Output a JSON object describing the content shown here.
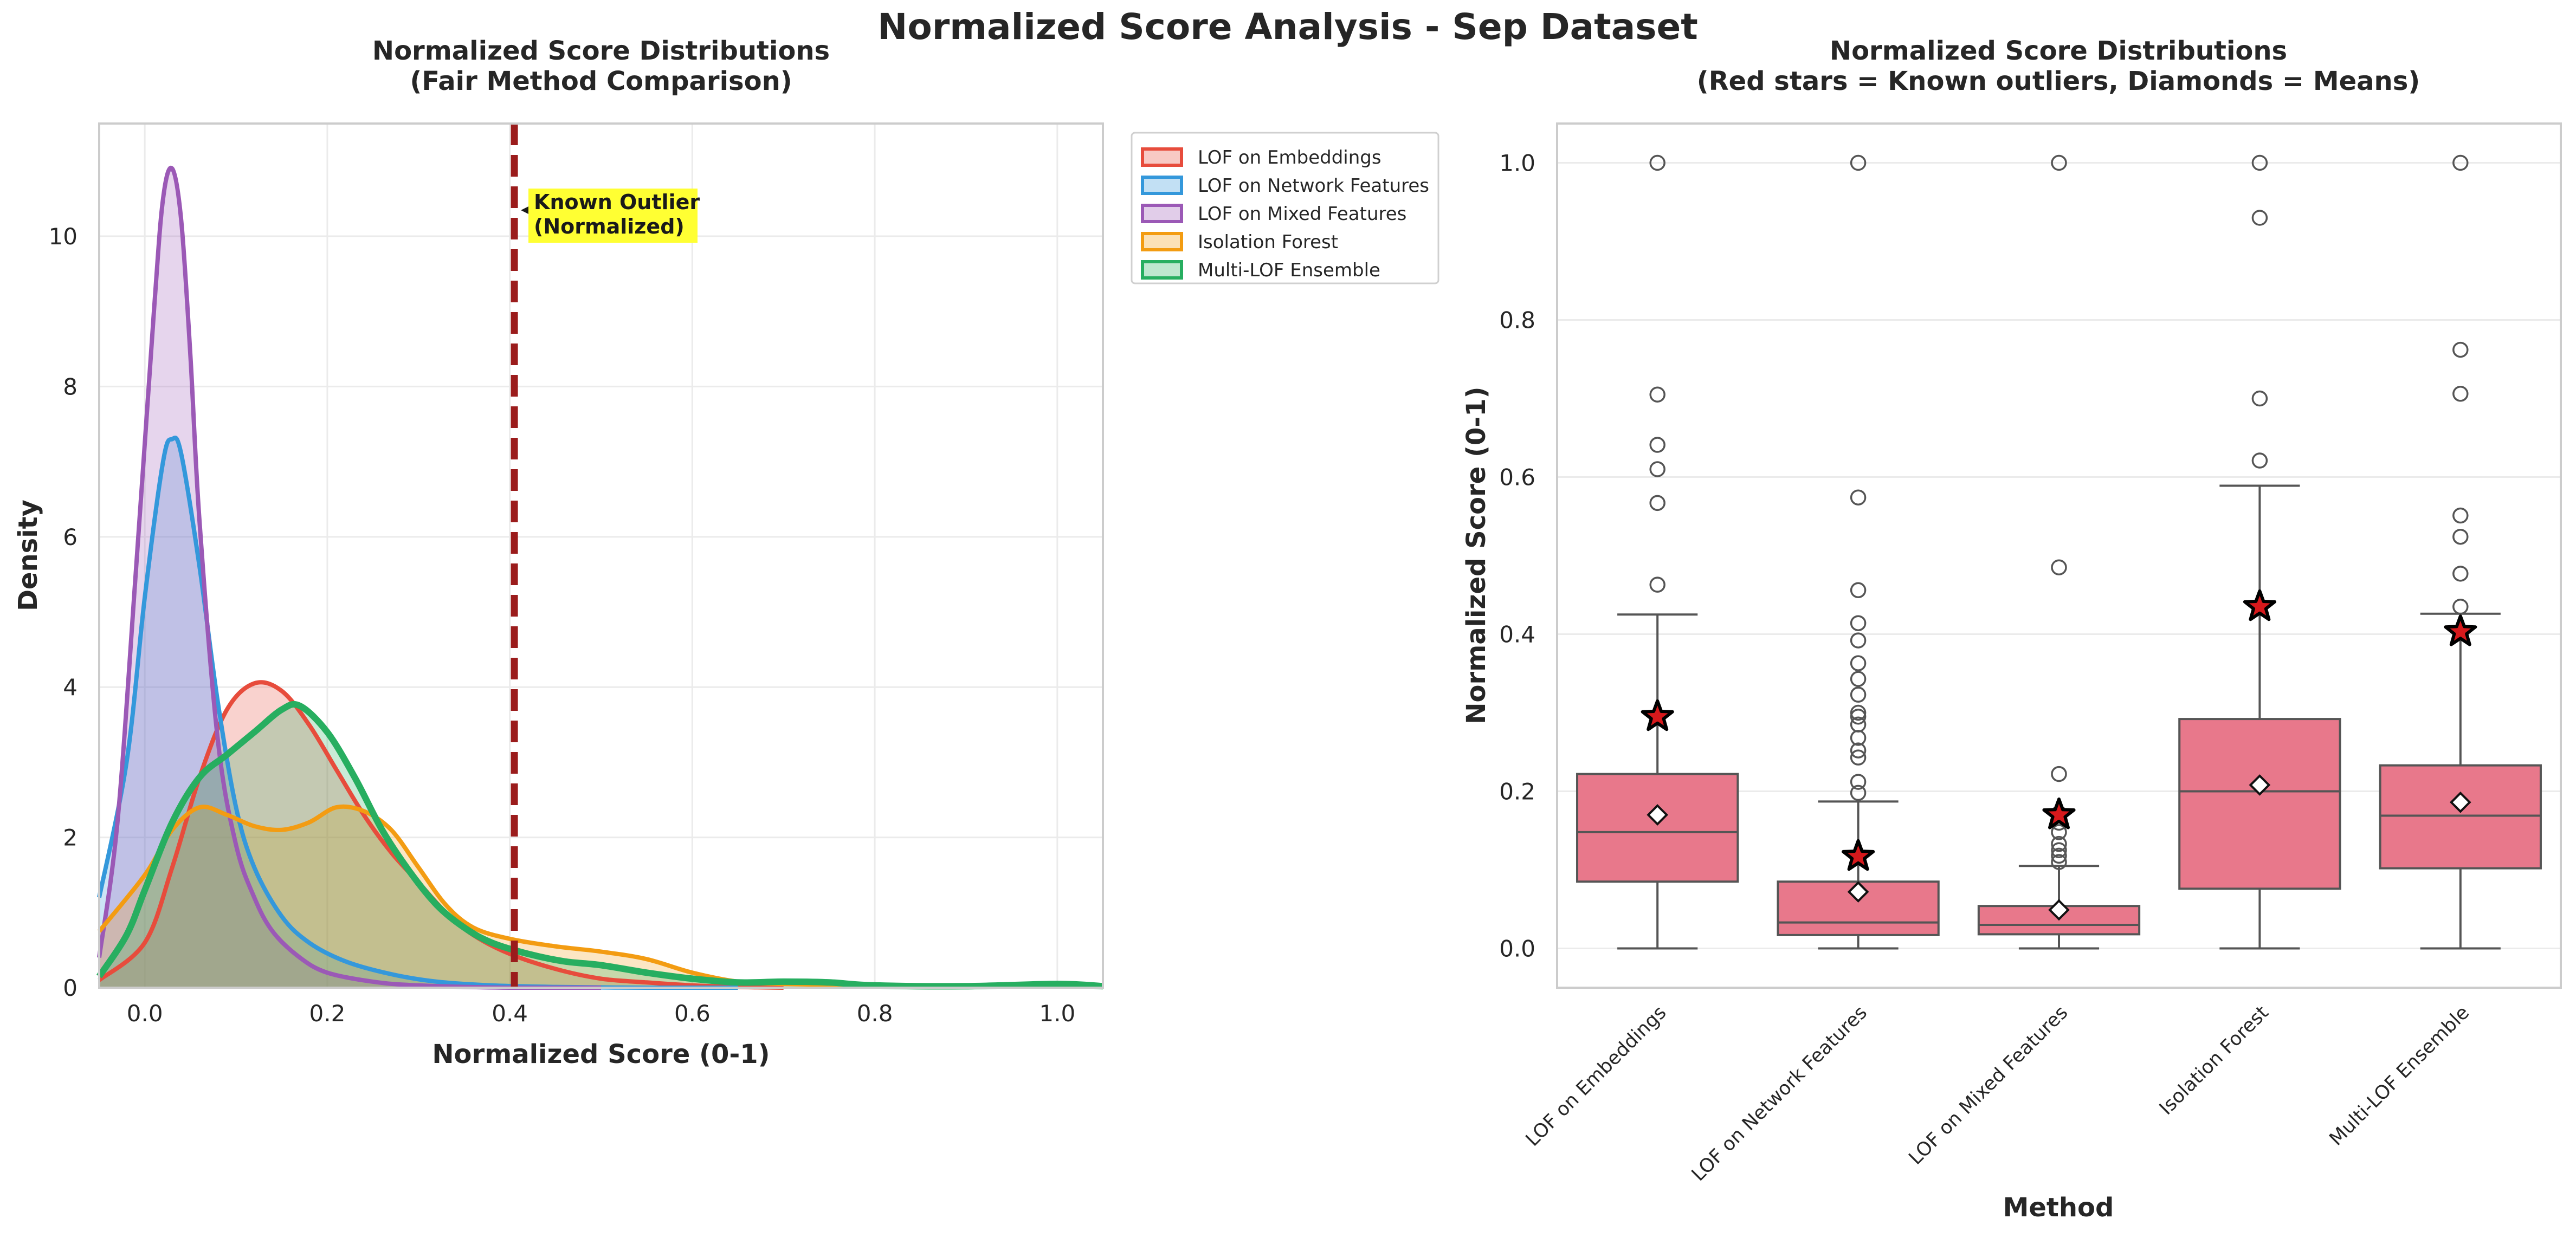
{
  "suptitle": "Normalized Score Analysis - Sep Dataset",
  "left": {
    "title_line1": "Normalized Score Distributions",
    "title_line2": "(Fair Method Comparison)",
    "xlabel": "Normalized Score (0-1)",
    "ylabel": "Density",
    "annotation_line1": "Known Outlier",
    "annotation_line2": "(Normalized)"
  },
  "right": {
    "title_line1": "Normalized Score Distributions",
    "title_line2": "(Red stars = Known outliers, Diamonds = Means)",
    "xlabel": "Method",
    "ylabel": "Normalized Score (0-1)"
  },
  "colors": {
    "lof_embeddings": "#e74c3c",
    "lof_network": "#3498db",
    "lof_mixed": "#9b59b6",
    "isolation_forest": "#f39c12",
    "multi_lof": "#27ae60",
    "known_outlier_line": "#9b1c1c",
    "annotation_bg": "#ffff33",
    "box_fill": "#e8788b",
    "box_edge": "#555555",
    "star": "#d7191c"
  },
  "chart_data": [
    {
      "type": "area",
      "title": "Normalized Score Distributions\n(Fair Method Comparison)",
      "xlabel": "Normalized Score (0-1)",
      "ylabel": "Density",
      "xlim": [
        -0.05,
        1.05
      ],
      "ylim": [
        0,
        11.5
      ],
      "xticks": [
        0.0,
        0.2,
        0.4,
        0.6,
        0.8,
        1.0
      ],
      "yticks": [
        0,
        2,
        4,
        6,
        8,
        10
      ],
      "grid": true,
      "legend": "upper right, outside plot",
      "known_outlier_x": 0.405,
      "series": [
        {
          "name": "LOF on Embeddings",
          "color": "#e74c3c",
          "x": [
            -0.05,
            0.0,
            0.03,
            0.06,
            0.09,
            0.12,
            0.15,
            0.18,
            0.21,
            0.24,
            0.27,
            0.3,
            0.33,
            0.36,
            0.4,
            0.45,
            0.5,
            0.55,
            0.6,
            0.65,
            0.7
          ],
          "y": [
            0.1,
            0.6,
            1.6,
            2.8,
            3.7,
            4.05,
            3.95,
            3.5,
            2.9,
            2.3,
            1.8,
            1.4,
            1.0,
            0.7,
            0.45,
            0.25,
            0.12,
            0.07,
            0.03,
            0.01,
            0.0
          ]
        },
        {
          "name": "LOF on Network Features",
          "color": "#3498db",
          "x": [
            -0.05,
            -0.02,
            0.0,
            0.02,
            0.03,
            0.04,
            0.06,
            0.08,
            0.1,
            0.12,
            0.15,
            0.18,
            0.22,
            0.27,
            0.32,
            0.38,
            0.45,
            0.55,
            0.65
          ],
          "y": [
            1.2,
            3.0,
            5.2,
            7.0,
            7.3,
            7.1,
            5.6,
            3.8,
            2.4,
            1.6,
            0.95,
            0.6,
            0.35,
            0.18,
            0.08,
            0.03,
            0.01,
            0.0,
            0.0
          ]
        },
        {
          "name": "LOF on Mixed Features",
          "color": "#9b59b6",
          "x": [
            -0.05,
            -0.03,
            -0.01,
            0.01,
            0.02,
            0.03,
            0.04,
            0.05,
            0.06,
            0.08,
            0.1,
            0.12,
            0.14,
            0.17,
            0.2,
            0.25,
            0.3,
            0.4,
            0.5
          ],
          "y": [
            0.4,
            2.2,
            5.5,
            9.0,
            10.5,
            10.9,
            10.2,
            8.4,
            6.2,
            3.3,
            1.9,
            1.2,
            0.75,
            0.4,
            0.2,
            0.08,
            0.03,
            0.0,
            0.0
          ]
        },
        {
          "name": "Isolation Forest",
          "color": "#f39c12",
          "x": [
            -0.05,
            0.0,
            0.03,
            0.06,
            0.09,
            0.12,
            0.15,
            0.18,
            0.21,
            0.24,
            0.27,
            0.3,
            0.33,
            0.36,
            0.4,
            0.45,
            0.5,
            0.55,
            0.6,
            0.65,
            0.7,
            0.8,
            0.9,
            1.0,
            1.05
          ],
          "y": [
            0.75,
            1.5,
            2.1,
            2.4,
            2.3,
            2.15,
            2.1,
            2.2,
            2.4,
            2.35,
            2.1,
            1.6,
            1.1,
            0.8,
            0.65,
            0.55,
            0.48,
            0.38,
            0.2,
            0.08,
            0.05,
            0.03,
            0.03,
            0.04,
            0.02
          ]
        },
        {
          "name": "Multi-LOF Ensemble",
          "color": "#27ae60",
          "x": [
            -0.05,
            -0.02,
            0.0,
            0.03,
            0.06,
            0.09,
            0.12,
            0.15,
            0.17,
            0.2,
            0.23,
            0.26,
            0.29,
            0.32,
            0.35,
            0.38,
            0.42,
            0.46,
            0.5,
            0.55,
            0.6,
            0.65,
            0.7,
            0.75,
            0.8,
            0.9,
            1.0,
            1.05
          ],
          "y": [
            0.15,
            0.7,
            1.3,
            2.2,
            2.8,
            3.1,
            3.4,
            3.7,
            3.75,
            3.4,
            2.8,
            2.1,
            1.55,
            1.1,
            0.8,
            0.6,
            0.45,
            0.35,
            0.3,
            0.2,
            0.12,
            0.07,
            0.08,
            0.07,
            0.03,
            0.02,
            0.05,
            0.02
          ]
        }
      ]
    },
    {
      "type": "box",
      "title": "Normalized Score Distributions\n(Red stars = Known outliers, Diamonds = Means)",
      "xlabel": "Method",
      "ylabel": "Normalized Score (0-1)",
      "ylim": [
        -0.05,
        1.05
      ],
      "yticks": [
        0.0,
        0.2,
        0.4,
        0.6,
        0.8,
        1.0
      ],
      "grid": true,
      "categories": [
        "LOF on Embeddings",
        "LOF on Network Features",
        "LOF on Mixed Features",
        "Isolation Forest",
        "Multi-LOF Ensemble"
      ],
      "boxes": [
        {
          "whisker_low": 0.0,
          "q1": 0.085,
          "median": 0.148,
          "q3": 0.222,
          "whisker_high": 0.425,
          "mean": 0.17,
          "known_outlier": 0.295,
          "fliers": [
            0.463,
            0.567,
            0.61,
            0.641,
            0.705,
            1.0
          ]
        },
        {
          "whisker_low": 0.0,
          "q1": 0.017,
          "median": 0.033,
          "q3": 0.085,
          "whisker_high": 0.187,
          "mean": 0.072,
          "known_outlier": 0.117,
          "fliers": [
            0.198,
            0.212,
            0.243,
            0.252,
            0.268,
            0.285,
            0.295,
            0.3,
            0.323,
            0.343,
            0.363,
            0.392,
            0.414,
            0.456,
            0.574,
            1.0
          ]
        },
        {
          "whisker_low": 0.0,
          "q1": 0.018,
          "median": 0.03,
          "q3": 0.054,
          "whisker_high": 0.105,
          "mean": 0.049,
          "known_outlier": 0.17,
          "fliers": [
            0.11,
            0.118,
            0.125,
            0.133,
            0.148,
            0.16,
            0.172,
            0.222,
            0.485,
            1.0
          ]
        },
        {
          "whisker_low": 0.0,
          "q1": 0.076,
          "median": 0.2,
          "q3": 0.292,
          "whisker_high": 0.589,
          "mean": 0.208,
          "known_outlier": 0.435,
          "fliers": [
            0.621,
            0.7,
            0.93,
            1.0
          ]
        },
        {
          "whisker_low": 0.0,
          "q1": 0.102,
          "median": 0.169,
          "q3": 0.233,
          "whisker_high": 0.426,
          "mean": 0.186,
          "known_outlier": 0.403,
          "fliers": [
            0.435,
            0.477,
            0.524,
            0.551,
            0.706,
            0.762,
            1.0
          ]
        }
      ]
    }
  ]
}
